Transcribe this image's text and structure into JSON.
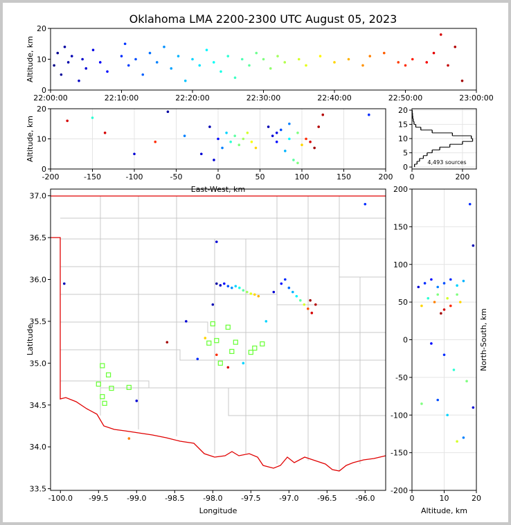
{
  "chart_data": [
    {
      "type": "scatter",
      "title": "Oklahoma LMA 2200-2300 UTC August 05, 2023",
      "ylabel": "Altitude, km",
      "colormap": "jet",
      "clim": [
        0,
        60
      ],
      "xlim": [
        0,
        60
      ],
      "xticks": [
        {
          "value": 0,
          "label": "22:00:00"
        },
        {
          "value": 10,
          "label": "22:10:00"
        },
        {
          "value": 20,
          "label": "22:20:00"
        },
        {
          "value": 30,
          "label": "22:30:00"
        },
        {
          "value": 40,
          "label": "22:40:00"
        },
        {
          "value": 50,
          "label": "22:50:00"
        },
        {
          "value": 60,
          "label": "23:00:00"
        }
      ],
      "ylim": [
        0,
        20
      ],
      "yticks": [
        0,
        10,
        20
      ],
      "grid": false,
      "series": [
        {
          "x": [
            0.5,
            1,
            1.5,
            2,
            2.5,
            3,
            4,
            4.5,
            5,
            6,
            7,
            8,
            10,
            10.5,
            11,
            12,
            13,
            14,
            15,
            16,
            17,
            18,
            19,
            20,
            21,
            22,
            23,
            24,
            25,
            26,
            27,
            28,
            29,
            30,
            31,
            32,
            33,
            35,
            36,
            38,
            40,
            42,
            44,
            45,
            47,
            49,
            50,
            51,
            53,
            54,
            55,
            56,
            57,
            58
          ],
          "values": [
            8,
            12,
            5,
            14,
            9,
            11,
            3,
            10,
            7,
            13,
            9,
            6,
            11,
            15,
            8,
            10,
            5,
            12,
            9,
            14,
            7,
            11,
            3,
            10,
            8,
            13,
            9,
            6,
            11,
            4,
            10,
            8,
            12,
            10,
            7,
            11,
            9,
            10,
            8,
            11,
            9,
            10,
            8,
            11,
            12,
            9,
            8,
            10,
            9,
            12,
            18,
            8,
            14,
            3
          ]
        }
      ]
    },
    {
      "type": "scatter",
      "xlabel": "East-West, km",
      "ylabel": "Altitude, km",
      "colormap": "jet",
      "clim": [
        0,
        60
      ],
      "xlim": [
        -200,
        200
      ],
      "xticks": [
        -200,
        -150,
        -100,
        -50,
        0,
        50,
        100,
        150,
        200
      ],
      "ylim": [
        0,
        20
      ],
      "yticks": [
        0,
        10,
        20
      ],
      "grid": true,
      "series": [
        {
          "x": [
            -180,
            -150,
            -135,
            -100,
            -75,
            -60,
            -40,
            -20,
            -10,
            0,
            5,
            10,
            15,
            20,
            25,
            30,
            35,
            40,
            45,
            -5,
            60,
            65,
            70,
            75,
            80,
            85,
            90,
            95,
            100,
            105,
            110,
            115,
            120,
            70,
            85,
            95,
            180,
            125
          ],
          "values": [
            16,
            17,
            12,
            5,
            9,
            19,
            11,
            5,
            14,
            10,
            7,
            12,
            9,
            11,
            8,
            10,
            12,
            9,
            7,
            3,
            14,
            11,
            9,
            13,
            6,
            10,
            3,
            12,
            8,
            10,
            9,
            7,
            14,
            12,
            15,
            2,
            18,
            18
          ],
          "c": [
            55,
            25,
            55,
            5,
            50,
            2,
            15,
            5,
            3,
            8,
            15,
            20,
            25,
            28,
            30,
            32,
            35,
            37,
            40,
            5,
            3,
            5,
            8,
            12,
            18,
            22,
            28,
            30,
            40,
            50,
            55,
            58,
            57,
            6,
            15,
            30,
            10,
            57
          ]
        }
      ]
    },
    {
      "type": "histogram",
      "orientation": "horizontal",
      "color": "#000000",
      "annotation": "4,493 sources",
      "bins": [
        0,
        1,
        2,
        3,
        4,
        5,
        6,
        7,
        8,
        9,
        10,
        11,
        12,
        13,
        14,
        15,
        16,
        17,
        18,
        19,
        20
      ],
      "values": [
        10,
        20,
        30,
        45,
        60,
        80,
        110,
        150,
        200,
        240,
        235,
        160,
        80,
        35,
        15,
        8,
        5,
        3,
        2,
        1
      ],
      "xlim": [
        0,
        255
      ],
      "xticks": [
        0,
        200
      ],
      "ylim": [
        -0.7,
        20.5
      ],
      "yticks": [
        0,
        5,
        10,
        15,
        20
      ],
      "grid": true
    },
    {
      "type": "scatter",
      "xlabel": "Longitude",
      "ylabel": "Latitude",
      "colormap": "jet",
      "clim": [
        0,
        60
      ],
      "xlim": [
        -100.13,
        -95.73
      ],
      "xticks": [
        {
          "value": -100,
          "label": "-100.0"
        },
        -99.5,
        {
          "value": -99,
          "label": "-99.0"
        },
        -98.5,
        {
          "value": -98,
          "label": "-98.0"
        },
        -97.5,
        {
          "value": -97,
          "label": "-97.0"
        },
        -96.5,
        {
          "value": -96,
          "label": "-96.0"
        }
      ],
      "ylim": [
        33.48,
        37.08
      ],
      "yticks": [
        33.5,
        {
          "value": 34,
          "label": "34.0"
        },
        34.5,
        {
          "value": 35,
          "label": "35.0"
        },
        35.5,
        {
          "value": 36,
          "label": "36.0"
        },
        36.5,
        {
          "value": 37,
          "label": "37.0"
        }
      ],
      "grid": false,
      "series": [
        {
          "x": [
            -97.95,
            -97.9,
            -97.85,
            -97.8,
            -97.75,
            -97.7,
            -97.65,
            -97.6,
            -97.55,
            -97.5,
            -97.45,
            -97.4,
            -97.2,
            -97.1,
            -97.05,
            -97.0,
            -96.95,
            -96.9,
            -96.85,
            -96.8,
            -96.75,
            -96.7,
            -96.72,
            -96.65,
            -97.95,
            -98.0,
            -98.1,
            -97.95,
            -97.8,
            -98.2,
            -98.6,
            -99.0,
            -99.95,
            -96.0,
            -97.3,
            -98.35,
            -97.6,
            -99.1
          ],
          "values": [
            35.95,
            35.93,
            35.95,
            35.92,
            35.9,
            35.92,
            35.9,
            35.87,
            35.85,
            35.83,
            35.82,
            35.8,
            35.85,
            35.95,
            36.0,
            35.9,
            35.85,
            35.8,
            35.75,
            35.7,
            35.65,
            35.6,
            35.75,
            35.7,
            36.45,
            35.7,
            35.3,
            35.1,
            34.95,
            35.05,
            35.25,
            34.55,
            35.95,
            36.9,
            35.5,
            35.5,
            35.0,
            34.1
          ],
          "c": [
            2,
            4,
            8,
            12,
            16,
            20,
            24,
            28,
            32,
            36,
            40,
            42,
            5,
            8,
            10,
            14,
            18,
            22,
            28,
            35,
            48,
            55,
            58,
            57,
            5,
            3,
            40,
            50,
            55,
            10,
            58,
            5,
            3,
            10,
            20,
            5,
            20,
            45
          ]
        },
        {
          "marker": "square",
          "color": "#66ff33",
          "x": [
            -99.5,
            -99.45,
            -99.42,
            -99.45,
            -99.37,
            -99.33,
            -99.1,
            -98.05,
            -98.0,
            -97.95,
            -97.9,
            -97.8,
            -97.75,
            -97.7,
            -97.5,
            -97.45,
            -97.35
          ],
          "values": [
            34.75,
            34.6,
            34.52,
            34.97,
            34.86,
            34.7,
            34.71,
            35.24,
            35.47,
            35.27,
            35.0,
            35.43,
            35.14,
            35.25,
            35.13,
            35.18,
            35.23
          ]
        }
      ]
    },
    {
      "type": "scatter",
      "xlabel": "Altitude, km",
      "ylabel": "North-South, km",
      "ylabel_side": "right",
      "colormap": "jet",
      "clim": [
        0,
        60
      ],
      "xlim": [
        0,
        20
      ],
      "xticks": [
        0,
        10,
        20
      ],
      "ylim": [
        -200,
        200
      ],
      "yticks": [
        -200,
        -150,
        -100,
        -50,
        0,
        50,
        100,
        150,
        200
      ],
      "grid": true,
      "series": [
        {
          "x": [
            2,
            4,
            6,
            8,
            10,
            12,
            14,
            16,
            5,
            8,
            11,
            14,
            3,
            7,
            10,
            9,
            12,
            15,
            6,
            10,
            13,
            17,
            8,
            11,
            16,
            18,
            19,
            19,
            3,
            14
          ],
          "values": [
            70,
            75,
            80,
            70,
            75,
            80,
            72,
            78,
            55,
            60,
            55,
            60,
            45,
            50,
            40,
            35,
            45,
            50,
            -5,
            -20,
            -40,
            -55,
            -80,
            -100,
            -130,
            180,
            125,
            -90,
            -85,
            -135
          ],
          "c": [
            5,
            10,
            8,
            15,
            12,
            10,
            20,
            18,
            25,
            30,
            35,
            30,
            40,
            45,
            55,
            58,
            50,
            40,
            8,
            10,
            25,
            30,
            12,
            20,
            15,
            10,
            3,
            5,
            30,
            35
          ]
        }
      ]
    }
  ]
}
